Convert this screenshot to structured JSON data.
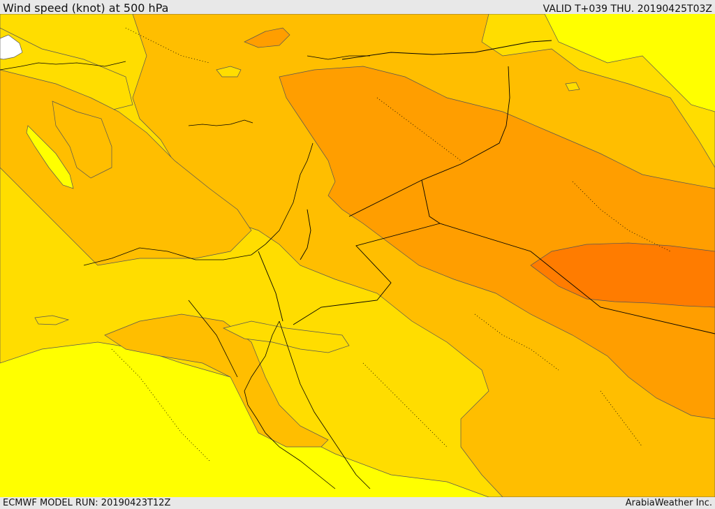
{
  "header": {
    "title": "Wind speed (knot) at 500 hPa",
    "valid": "VALID T+039 THU. 20190425T03Z"
  },
  "footer": {
    "model_run": "ECMWF MODEL RUN: 20190423T12Z",
    "credit": "ArabiaWeather Inc."
  },
  "map": {
    "field": "wind speed 500 hPa",
    "palette": {
      "lowest": "#ffffff",
      "level1": "#ffff00",
      "level2": "#ffdd00",
      "level3": "#ffbe00",
      "level4": "#ff9e00",
      "level5": "#ff7c00",
      "contour": "#555555",
      "coastline": "#000000",
      "borders": "#000000"
    }
  }
}
